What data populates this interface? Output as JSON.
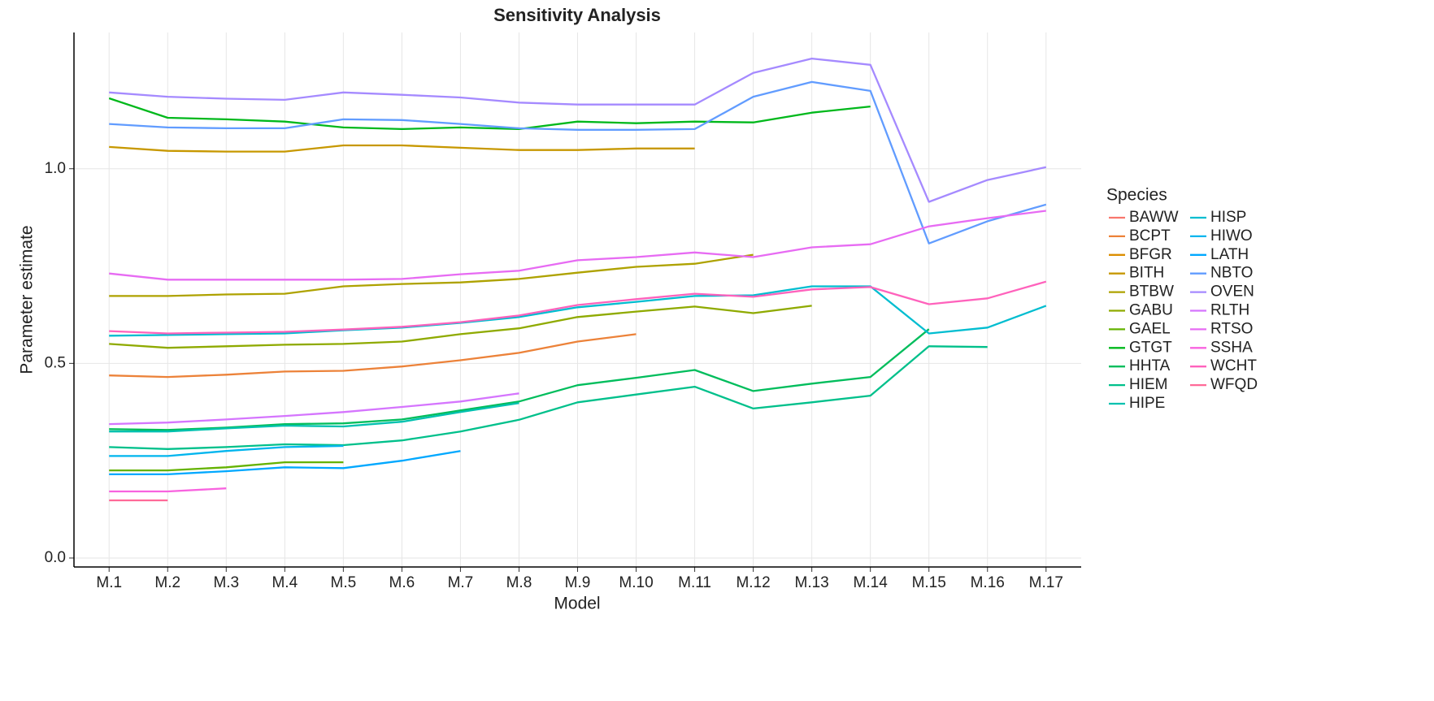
{
  "chart_data": {
    "type": "line",
    "title": "Sensitivity Analysis",
    "x_label": "Model",
    "y_label": "Parameter estimate",
    "legend_title": "Species",
    "legend_position": "right",
    "grid": true,
    "categories": [
      "M.1",
      "M.2",
      "M.3",
      "M.4",
      "M.5",
      "M.6",
      "M.7",
      "M.8",
      "M.9",
      "M.10",
      "M.11",
      "M.12",
      "M.13",
      "M.14",
      "M.15",
      "M.16",
      "M.17"
    ],
    "ylim": [
      -0.023,
      1.35
    ],
    "yticks": [
      {
        "value": 0,
        "label": "0.0"
      },
      0.5,
      {
        "value": 1,
        "label": "1.0"
      }
    ],
    "series": [
      {
        "name": "BAWW",
        "color": "#F8766D",
        "values": [
          null,
          null,
          null,
          null,
          null,
          null,
          null,
          null,
          null,
          null,
          null,
          null,
          null,
          null,
          null,
          null,
          null
        ]
      },
      {
        "name": "BCPT",
        "color": "#EC8239",
        "values": [
          0.469,
          0.465,
          0.471,
          0.479,
          0.481,
          0.492,
          0.508,
          0.527,
          0.556,
          0.575,
          null,
          null,
          null,
          null,
          null,
          null,
          null
        ]
      },
      {
        "name": "BFGR",
        "color": "#DB8E00",
        "values": [
          null,
          null,
          null,
          null,
          null,
          null,
          null,
          null,
          null,
          null,
          null,
          null,
          null,
          null,
          null,
          null,
          null
        ]
      },
      {
        "name": "BITH",
        "color": "#C79800",
        "values": [
          1.056,
          1.046,
          1.044,
          1.044,
          1.06,
          1.06,
          1.054,
          1.048,
          1.048,
          1.052,
          1.052,
          null,
          null,
          null,
          null,
          null,
          null
        ]
      },
      {
        "name": "BTBW",
        "color": "#AEA200",
        "values": [
          0.673,
          0.673,
          0.677,
          0.679,
          0.698,
          0.704,
          0.708,
          0.717,
          0.733,
          0.748,
          0.756,
          0.779,
          null,
          null,
          null,
          null,
          null
        ]
      },
      {
        "name": "GABU",
        "color": "#8FAA00",
        "values": [
          0.55,
          0.54,
          0.544,
          0.548,
          0.55,
          0.556,
          0.575,
          0.59,
          0.619,
          0.633,
          0.646,
          0.629,
          0.648,
          null,
          null,
          null,
          null
        ]
      },
      {
        "name": "GAEL",
        "color": "#64B200",
        "values": [
          0.225,
          0.225,
          0.233,
          0.246,
          0.246,
          null,
          null,
          null,
          null,
          null,
          null,
          null,
          null,
          null,
          null,
          null,
          null
        ]
      },
      {
        "name": "GTGT",
        "color": "#00B81B",
        "values": [
          1.181,
          1.131,
          1.127,
          1.121,
          1.106,
          1.102,
          1.106,
          1.102,
          1.121,
          1.117,
          1.121,
          1.119,
          1.144,
          1.16,
          null,
          null,
          null
        ]
      },
      {
        "name": "HHTA",
        "color": "#00BD5C",
        "values": [
          0.331,
          0.329,
          0.335,
          0.344,
          0.346,
          0.356,
          0.379,
          0.402,
          0.444,
          0.463,
          0.483,
          0.429,
          0.448,
          0.465,
          0.588,
          null,
          null
        ]
      },
      {
        "name": "HIEM",
        "color": "#00C08B",
        "values": [
          0.285,
          0.28,
          0.285,
          0.292,
          0.29,
          0.302,
          0.325,
          0.355,
          0.4,
          0.42,
          0.44,
          0.384,
          0.4,
          0.417,
          0.544,
          0.542,
          null
        ]
      },
      {
        "name": "HIPE",
        "color": "#00C1AF",
        "values": [
          0.325,
          0.325,
          0.333,
          0.34,
          0.338,
          0.35,
          0.375,
          0.398,
          null,
          null,
          null,
          null,
          null,
          null,
          null,
          null,
          null
        ]
      },
      {
        "name": "HISP",
        "color": "#00BDD0",
        "values": [
          0.571,
          0.573,
          0.575,
          0.577,
          0.585,
          0.592,
          0.604,
          0.619,
          0.644,
          0.658,
          0.673,
          0.675,
          0.698,
          0.698,
          0.577,
          0.592,
          0.648
        ]
      },
      {
        "name": "HIWO",
        "color": "#00B5EE",
        "values": [
          0.262,
          0.262,
          0.275,
          0.285,
          0.288,
          null,
          null,
          null,
          null,
          null,
          null,
          null,
          null,
          null,
          null,
          null,
          null
        ]
      },
      {
        "name": "LATH",
        "color": "#00A8FF",
        "values": [
          0.215,
          0.215,
          0.223,
          0.233,
          0.231,
          0.25,
          0.275,
          null,
          null,
          null,
          null,
          null,
          null,
          null,
          null,
          null,
          null
        ]
      },
      {
        "name": "NBTO",
        "color": "#619CFF",
        "values": [
          1.115,
          1.106,
          1.104,
          1.104,
          1.127,
          1.125,
          1.115,
          1.104,
          1.1,
          1.1,
          1.102,
          1.185,
          1.223,
          1.2,
          0.808,
          0.865,
          0.908
        ]
      },
      {
        "name": "OVEN",
        "color": "#A58AFF",
        "values": [
          1.196,
          1.185,
          1.18,
          1.177,
          1.196,
          1.19,
          1.183,
          1.17,
          1.165,
          1.165,
          1.165,
          1.246,
          1.283,
          1.267,
          0.915,
          0.971,
          1.004
        ]
      },
      {
        "name": "RLTH",
        "color": "#D575FE",
        "values": [
          0.344,
          0.348,
          0.356,
          0.365,
          0.375,
          0.388,
          0.402,
          0.423,
          null,
          null,
          null,
          null,
          null,
          null,
          null,
          null,
          null
        ]
      },
      {
        "name": "RTSO",
        "color": "#E76BF3",
        "values": [
          0.731,
          0.715,
          0.715,
          0.715,
          0.715,
          0.717,
          0.729,
          0.738,
          0.765,
          0.773,
          0.785,
          0.773,
          0.798,
          0.806,
          0.852,
          0.873,
          0.892
        ]
      },
      {
        "name": "SSHA",
        "color": "#F863DF",
        "values": [
          0.171,
          0.171,
          0.179,
          null,
          null,
          null,
          null,
          null,
          null,
          null,
          null,
          null,
          null,
          null,
          null,
          null,
          null
        ]
      },
      {
        "name": "WCHT",
        "color": "#FF62BC",
        "values": [
          0.583,
          0.577,
          0.579,
          0.581,
          0.587,
          0.594,
          0.606,
          0.623,
          0.65,
          0.665,
          0.679,
          0.671,
          0.69,
          0.696,
          0.652,
          0.667,
          0.71
        ]
      },
      {
        "name": "WFQD",
        "color": "#FF6A98",
        "values": [
          0.148,
          0.148,
          null,
          null,
          null,
          null,
          null,
          null,
          null,
          null,
          null,
          null,
          null,
          null,
          null,
          null,
          null
        ]
      }
    ]
  }
}
